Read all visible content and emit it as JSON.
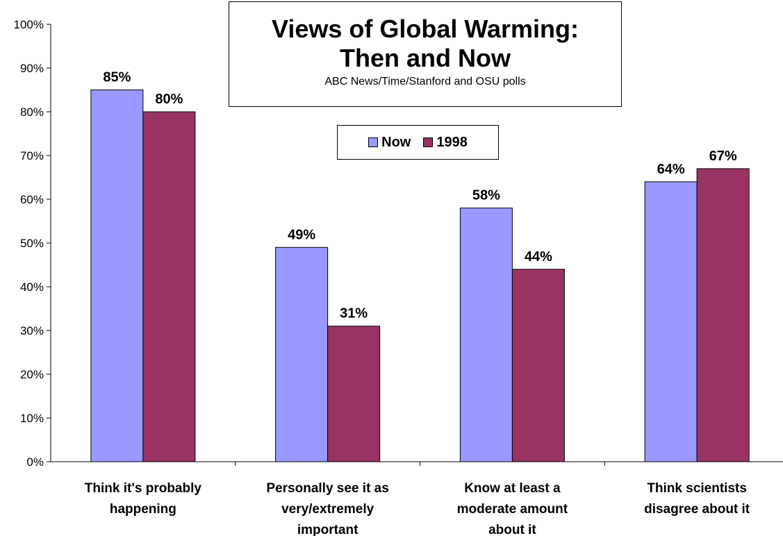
{
  "chart_data": {
    "type": "bar",
    "title": "Views of Global Warming: Then and Now",
    "subtitle": "ABC News/Time/Stanford and OSU polls",
    "categories": [
      [
        "Think it's probably",
        "happening"
      ],
      [
        "Personally see it as",
        "very/extremely",
        "important"
      ],
      [
        "Know at least a",
        "moderate amount",
        "about it"
      ],
      [
        "Think scientists",
        "disagree about it"
      ]
    ],
    "series": [
      {
        "name": "Now",
        "color": "#9999FF",
        "values": [
          85,
          49,
          58,
          64
        ],
        "labels": [
          "85%",
          "49%",
          "58%",
          "64%"
        ]
      },
      {
        "name": "1998",
        "color": "#993366",
        "values": [
          80,
          31,
          44,
          67
        ],
        "labels": [
          "80%",
          "31%",
          "44%",
          "67%"
        ]
      }
    ],
    "ylim": [
      0,
      100
    ],
    "yticks": [
      "0%",
      "10%",
      "20%",
      "30%",
      "40%",
      "50%",
      "60%",
      "70%",
      "80%",
      "90%",
      "100%"
    ],
    "grid": false,
    "legend": "top-center"
  }
}
